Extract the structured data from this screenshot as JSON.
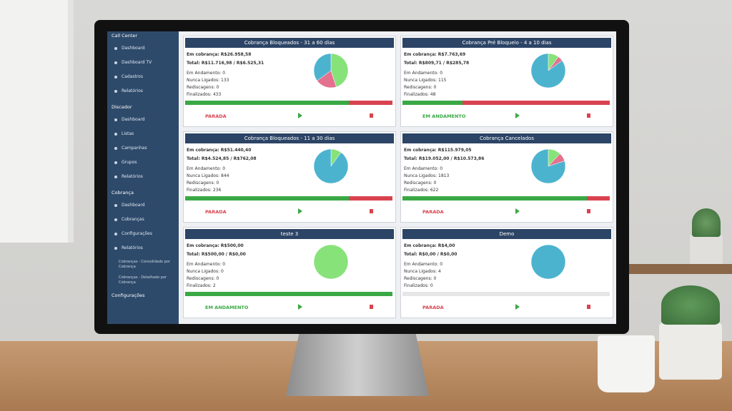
{
  "sidebar": {
    "sections": [
      {
        "title": "Call Center",
        "items": [
          "Dashboard",
          "Dashboard TV",
          "Cadastros",
          "Relatórios"
        ]
      },
      {
        "title": "Discador",
        "items": [
          "Dashboard",
          "Listas",
          "Campanhas",
          "Grupos",
          "Relatórios"
        ]
      },
      {
        "title": "Cobrança",
        "items": [
          "Dashboard",
          "Cobranças",
          "Configurações",
          "Relatórios"
        ],
        "subitems": [
          "Cobranças - Consolidado por Cobrança",
          "Cobranças - Detalhado por Cobrança"
        ]
      },
      {
        "title": "Configurações",
        "items": []
      }
    ]
  },
  "progress_colors": [
    "#3aa845",
    "#d9434f"
  ],
  "cards": [
    {
      "title": "Cobrança Bloqueados - 31 a 60 dias",
      "em_cobranca": "Em cobrança: R$26.958,58",
      "total": "Total: R$11.716,98 / R$6.525,31",
      "stats": [
        "Em Andamento: 0",
        "Nunca Ligados: 133",
        "Rediscagens: 0",
        "Finalizados: 433"
      ],
      "status": "PARADA",
      "status_color": "#d9434f",
      "pie": {
        "values": [
          45,
          20,
          35
        ],
        "colors": [
          "#88e27a",
          "#e4718f",
          "#4cb3cf"
        ]
      },
      "progress": [
        79,
        21
      ]
    },
    {
      "title": "Cobrança Pré Bloqueio - 4 a 10 dias",
      "em_cobranca": "Em cobrança: R$7.763,69",
      "total": "Total: R$809,71 / R$285,78",
      "stats": [
        "Em Andamento: 0",
        "Nunca Ligados: 115",
        "Rediscagens: 0",
        "Finalizados: 48"
      ],
      "status": "EM ANDAMENTO",
      "status_color": "#3aa845",
      "pie": {
        "values": [
          10,
          5,
          85
        ],
        "colors": [
          "#88e27a",
          "#e4718f",
          "#4cb3cf"
        ]
      },
      "progress": [
        29,
        71
      ]
    },
    {
      "title": "Cobrança Bloqueados - 11 a 30 dias",
      "em_cobranca": "Em cobrança: R$51.440,40",
      "total": "Total: R$4.524,85 / R$762,08",
      "stats": [
        "Em Andamento: 0",
        "Nunca Ligados: 844",
        "Rediscagens: 0",
        "Finalizados: 236"
      ],
      "status": "PARADA",
      "status_color": "#d9434f",
      "pie": {
        "values": [
          10,
          90
        ],
        "colors": [
          "#88e27a",
          "#4cb3cf"
        ]
      },
      "progress": [
        79,
        21
      ]
    },
    {
      "title": "Cobrança Cancelados",
      "em_cobranca": "Em cobrança: R$115.979,05",
      "total": "Total: R$19.052,00 / R$10.573,86",
      "stats": [
        "Em Andamento: 0",
        "Nunca Ligados: 1813",
        "Rediscagens: 0",
        "Finalizados: 622"
      ],
      "status": "PARADA",
      "status_color": "#d9434f",
      "pie": {
        "values": [
          12,
          8,
          80
        ],
        "colors": [
          "#88e27a",
          "#e4718f",
          "#4cb3cf"
        ]
      },
      "progress": [
        89,
        11
      ]
    },
    {
      "title": "teste 3",
      "em_cobranca": "Em cobrança: R$500,00",
      "total": "Total: R$500,00 / R$0,00",
      "stats": [
        "Em Andamento: 0",
        "Nunca Ligados: 0",
        "Rediscagens: 0",
        "Finalizados: 2"
      ],
      "status": "EM ANDAMENTO",
      "status_color": "#3aa845",
      "pie": {
        "values": [
          100
        ],
        "colors": [
          "#88e27a"
        ]
      },
      "progress": [
        100,
        0
      ]
    },
    {
      "title": "Demo",
      "em_cobranca": "Em cobrança: R$4,00",
      "total": "Total: R$0,00 / R$0,00",
      "stats": [
        "Em Andamento: 0",
        "Nunca Ligados: 4",
        "Rediscagens: 0",
        "Finalizados: 0"
      ],
      "status": "PARADA",
      "status_color": "#d9434f",
      "pie": {
        "values": [
          100
        ],
        "colors": [
          "#4cb3cf"
        ]
      },
      "progress": [
        0,
        0
      ]
    }
  ]
}
